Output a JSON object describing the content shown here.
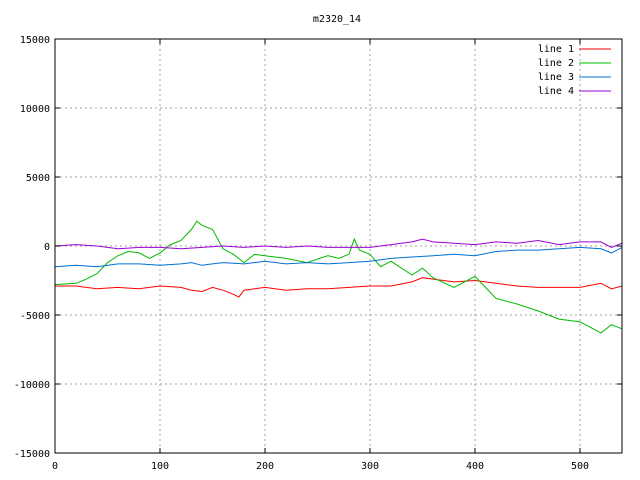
{
  "chart_data": {
    "type": "line",
    "title": "m2320_14",
    "xlabel": "",
    "ylabel": "",
    "xlim": [
      0,
      540
    ],
    "ylim": [
      -15000,
      15000
    ],
    "xticks": [
      0,
      100,
      200,
      300,
      400,
      500
    ],
    "yticks": [
      -15000,
      -10000,
      -5000,
      0,
      5000,
      10000,
      15000
    ],
    "grid": true,
    "legend": "top-right",
    "series": [
      {
        "name": "line 1",
        "color": "#ff0000",
        "x": [
          0,
          20,
          40,
          60,
          80,
          100,
          120,
          130,
          140,
          150,
          160,
          170,
          175,
          180,
          200,
          220,
          240,
          260,
          280,
          300,
          320,
          340,
          350,
          360,
          380,
          400,
          420,
          440,
          460,
          480,
          500,
          520,
          530,
          540
        ],
        "y": [
          -2900,
          -2900,
          -3100,
          -3000,
          -3100,
          -2900,
          -3000,
          -3200,
          -3300,
          -3000,
          -3200,
          -3500,
          -3700,
          -3200,
          -3000,
          -3200,
          -3100,
          -3100,
          -3000,
          -2900,
          -2900,
          -2600,
          -2300,
          -2400,
          -2600,
          -2500,
          -2700,
          -2900,
          -3000,
          -3000,
          -3000,
          -2700,
          -3100,
          -2900
        ]
      },
      {
        "name": "line 2",
        "color": "#00bb00",
        "x": [
          0,
          20,
          30,
          40,
          50,
          60,
          70,
          80,
          90,
          100,
          110,
          120,
          130,
          135,
          140,
          150,
          160,
          170,
          180,
          190,
          200,
          220,
          240,
          260,
          270,
          280,
          285,
          290,
          300,
          310,
          320,
          340,
          350,
          360,
          380,
          400,
          420,
          440,
          460,
          480,
          500,
          520,
          530,
          540
        ],
        "y": [
          -2800,
          -2700,
          -2400,
          -2000,
          -1200,
          -700,
          -400,
          -500,
          -900,
          -500,
          100,
          400,
          1200,
          1800,
          1500,
          1200,
          -200,
          -600,
          -1200,
          -600,
          -700,
          -900,
          -1200,
          -700,
          -900,
          -600,
          500,
          -300,
          -600,
          -1500,
          -1100,
          -2100,
          -1600,
          -2300,
          -3000,
          -2200,
          -3800,
          -4200,
          -4700,
          -5300,
          -5500,
          -6300,
          -5700,
          -6000
        ]
      },
      {
        "name": "line 3",
        "color": "#0070d0",
        "x": [
          0,
          20,
          40,
          60,
          80,
          100,
          120,
          130,
          140,
          150,
          160,
          180,
          200,
          220,
          240,
          260,
          280,
          300,
          320,
          340,
          360,
          380,
          400,
          420,
          440,
          460,
          480,
          500,
          520,
          530,
          540
        ],
        "y": [
          -1500,
          -1400,
          -1500,
          -1300,
          -1300,
          -1400,
          -1300,
          -1200,
          -1400,
          -1300,
          -1200,
          -1300,
          -1100,
          -1300,
          -1200,
          -1300,
          -1200,
          -1100,
          -900,
          -800,
          -700,
          -600,
          -700,
          -400,
          -300,
          -300,
          -200,
          -100,
          -200,
          -500,
          -100
        ]
      },
      {
        "name": "line 4",
        "color": "#9b00d3",
        "x": [
          0,
          20,
          40,
          60,
          80,
          100,
          120,
          140,
          160,
          180,
          200,
          220,
          240,
          260,
          280,
          300,
          320,
          340,
          350,
          360,
          380,
          400,
          420,
          440,
          460,
          480,
          500,
          520,
          530,
          540
        ],
        "y": [
          0,
          100,
          0,
          -200,
          -100,
          -100,
          -200,
          -100,
          0,
          -100,
          0,
          -100,
          0,
          -100,
          -100,
          -100,
          100,
          300,
          500,
          300,
          200,
          100,
          300,
          200,
          400,
          100,
          300,
          300,
          -100,
          200
        ]
      }
    ]
  }
}
